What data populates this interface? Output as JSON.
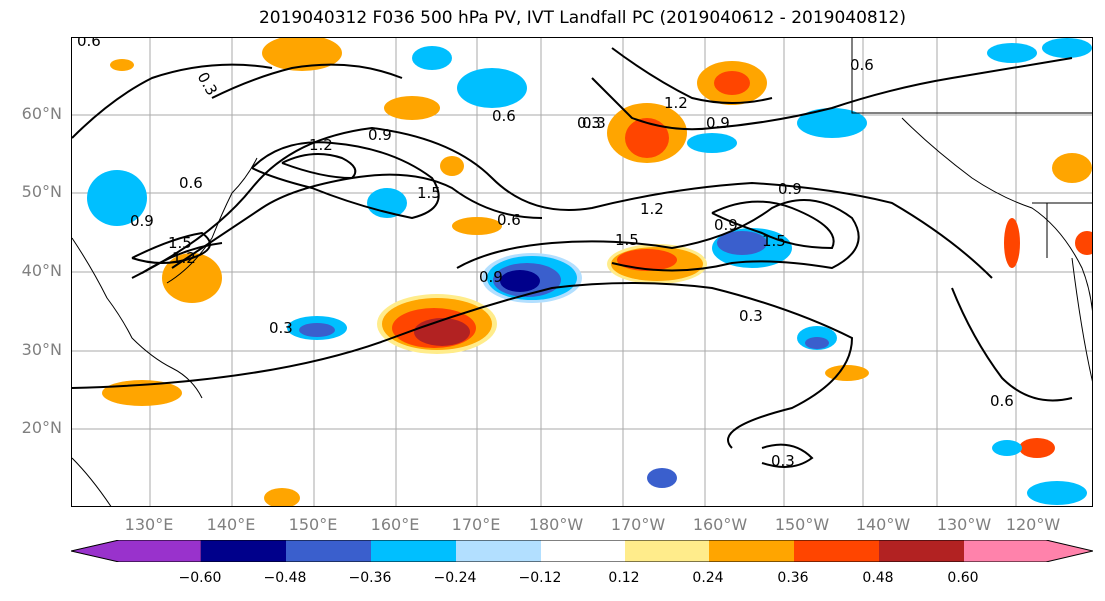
{
  "title": "2019040312 F036 500 hPa PV, IVT Landfall PC (2019040612 - 2019040812)",
  "lat_labels": [
    "60°N",
    "50°N",
    "40°N",
    "30°N",
    "20°N"
  ],
  "lon_labels": [
    "130°E",
    "140°E",
    "150°E",
    "160°E",
    "170°E",
    "180°W",
    "170°W",
    "160°W",
    "150°W",
    "140°W",
    "130°W",
    "120°W"
  ],
  "contour_labels": [
    "0.6",
    "0.3",
    "0.9",
    "1.2",
    "1.5",
    "0.6",
    "0.9",
    "1.2",
    "1.5",
    "0.6",
    "0.9",
    "0.3",
    "0.3",
    "0.6",
    "0.3",
    "0.9",
    "1.2",
    "1.5",
    "0.6",
    "0.9",
    "1.2",
    "1.5",
    "0.9",
    "0.3",
    "0.6",
    "0.3"
  ],
  "colorbar": {
    "ticks": [
      "−0.60",
      "−0.48",
      "−0.36",
      "−0.24",
      "−0.12",
      "0.12",
      "0.24",
      "0.36",
      "0.48",
      "0.60"
    ],
    "colors": [
      "#9932cc",
      "#00008b",
      "#3a5fcd",
      "#00bfff",
      "#b2dfff",
      "#ffffff",
      "#ffec8b",
      "#ffa500",
      "#ff4500",
      "#b22222",
      "#ff82ab"
    ]
  },
  "colors": {
    "neg_strong": "#00008b",
    "neg_mid": "#3a5fcd",
    "neg_light": "#00bfff",
    "neg_faint": "#b2dfff",
    "pos_faint": "#ffec8b",
    "pos_light": "#ffa500",
    "pos_mid": "#ff4500",
    "pos_strong": "#b22222"
  }
}
